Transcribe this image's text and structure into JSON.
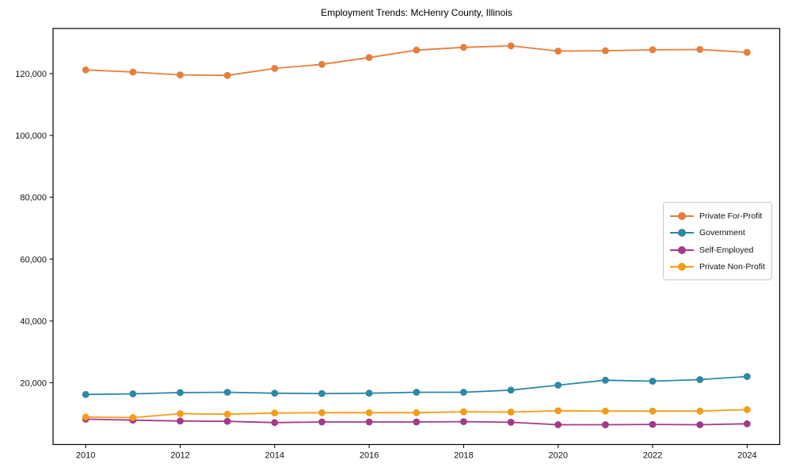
{
  "title": "Employment Trends: McHenry County, Illinois",
  "chart_data": {
    "type": "line",
    "title": "Employment Trends: McHenry County, Illinois",
    "xlabel": "",
    "ylabel": "",
    "grid": false,
    "legend_position": "center-right inside",
    "x": [
      2010,
      2011,
      2012,
      2013,
      2014,
      2015,
      2016,
      2017,
      2018,
      2019,
      2020,
      2021,
      2022,
      2023,
      2024
    ],
    "series": [
      {
        "name": "Private For-Profit",
        "color": "#E67E3C",
        "values": [
          121200,
          120500,
          119600,
          119400,
          121700,
          123000,
          125200,
          127600,
          128500,
          129000,
          127300,
          127400,
          127700,
          127800,
          126900
        ]
      },
      {
        "name": "Government",
        "color": "#2E87A5",
        "values": [
          16200,
          16400,
          16800,
          16900,
          16600,
          16500,
          16600,
          16900,
          16900,
          17600,
          19200,
          20800,
          20500,
          21000,
          22000
        ]
      },
      {
        "name": "Self-Employed",
        "color": "#A23A8C",
        "values": [
          8200,
          7900,
          7600,
          7500,
          7100,
          7300,
          7300,
          7300,
          7400,
          7200,
          6400,
          6400,
          6500,
          6400,
          6700
        ]
      },
      {
        "name": "Private Non-Profit",
        "color": "#F29D15",
        "values": [
          8900,
          8700,
          10000,
          9800,
          10200,
          10300,
          10300,
          10300,
          10600,
          10500,
          10900,
          10800,
          10800,
          10800,
          11300
        ]
      }
    ],
    "xticks": {
      "values": [
        2010,
        2012,
        2014,
        2016,
        2018,
        2020,
        2022,
        2024
      ],
      "labels": [
        "2010",
        "2012",
        "2014",
        "2016",
        "2018",
        "2020",
        "2022",
        "2024"
      ]
    },
    "yticks": {
      "values": [
        20000,
        40000,
        60000,
        80000,
        100000,
        120000
      ],
      "labels": [
        "20,000",
        "40,000",
        "60,000",
        "80,000",
        "100,000",
        "120,000"
      ]
    },
    "xlim": [
      2009.31,
      2024.69
    ],
    "ylim": [
      0,
      134600
    ]
  }
}
